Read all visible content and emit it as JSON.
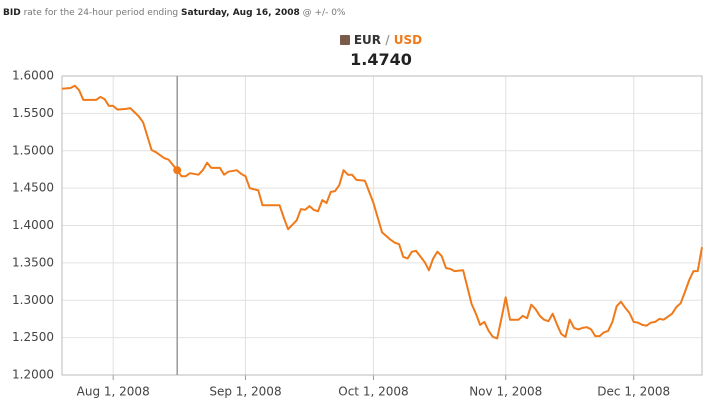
{
  "header": {
    "bid": "BID",
    "rate_text": "rate for the 24-hour period ending",
    "date": "Saturday, Aug 16, 2008",
    "spread": "@ +/- 0%"
  },
  "legend": {
    "base": "EUR",
    "separator": "/",
    "quote": "USD",
    "value": "1.4740"
  },
  "chart_data": {
    "type": "line",
    "color": "#f07a1a",
    "grid": true,
    "cursor": "2008-08-16",
    "x": [
      "2008-07-20",
      "2008-07-22",
      "2008-07-23",
      "2008-07-24",
      "2008-07-25",
      "2008-07-28",
      "2008-07-29",
      "2008-07-30",
      "2008-07-31",
      "2008-08-01",
      "2008-08-02",
      "2008-08-04",
      "2008-08-05",
      "2008-08-07",
      "2008-08-08",
      "2008-08-10",
      "2008-08-11",
      "2008-08-13",
      "2008-08-14",
      "2008-08-16",
      "2008-08-17",
      "2008-08-18",
      "2008-08-19",
      "2008-08-21",
      "2008-08-22",
      "2008-08-23",
      "2008-08-24",
      "2008-08-26",
      "2008-08-27",
      "2008-08-28",
      "2008-08-30",
      "2008-08-31",
      "2008-09-01",
      "2008-09-02",
      "2008-09-04",
      "2008-09-05",
      "2008-09-07",
      "2008-09-09",
      "2008-09-10",
      "2008-09-11",
      "2008-09-13",
      "2008-09-14",
      "2008-09-15",
      "2008-09-16",
      "2008-09-17",
      "2008-09-18",
      "2008-09-19",
      "2008-09-20",
      "2008-09-21",
      "2008-09-22",
      "2008-09-23",
      "2008-09-24",
      "2008-09-25",
      "2008-09-26",
      "2008-09-27",
      "2008-09-29",
      "2008-09-30",
      "2008-10-01",
      "2008-10-03",
      "2008-10-05",
      "2008-10-06",
      "2008-10-07",
      "2008-10-08",
      "2008-10-09",
      "2008-10-10",
      "2008-10-11",
      "2008-10-13",
      "2008-10-14",
      "2008-10-15",
      "2008-10-16",
      "2008-10-17",
      "2008-10-18",
      "2008-10-19",
      "2008-10-20",
      "2008-10-22",
      "2008-10-23",
      "2008-10-24",
      "2008-10-25",
      "2008-10-26",
      "2008-10-27",
      "2008-10-28",
      "2008-10-29",
      "2008-10-30",
      "2008-10-31",
      "2008-11-01",
      "2008-11-02",
      "2008-11-03",
      "2008-11-04",
      "2008-11-05",
      "2008-11-06",
      "2008-11-07",
      "2008-11-08",
      "2008-11-09",
      "2008-11-10",
      "2008-11-11",
      "2008-11-12",
      "2008-11-13",
      "2008-11-14",
      "2008-11-15",
      "2008-11-16",
      "2008-11-17",
      "2008-11-18",
      "2008-11-19",
      "2008-11-20",
      "2008-11-21",
      "2008-11-22",
      "2008-11-23",
      "2008-11-24",
      "2008-11-25",
      "2008-11-26",
      "2008-11-27",
      "2008-11-28",
      "2008-11-29",
      "2008-11-30",
      "2008-12-01",
      "2008-12-02",
      "2008-12-03",
      "2008-12-04",
      "2008-12-05",
      "2008-12-06",
      "2008-12-07",
      "2008-12-08",
      "2008-12-09",
      "2008-12-10",
      "2008-12-11",
      "2008-12-12",
      "2008-12-13",
      "2008-12-14",
      "2008-12-15",
      "2008-12-16",
      "2008-12-17"
    ],
    "values": [
      1.583,
      1.584,
      1.587,
      1.581,
      1.568,
      1.568,
      1.572,
      1.569,
      1.56,
      1.56,
      1.555,
      1.556,
      1.557,
      1.546,
      1.538,
      1.501,
      1.498,
      1.49,
      1.488,
      1.474,
      1.466,
      1.466,
      1.47,
      1.468,
      1.474,
      1.484,
      1.477,
      1.477,
      1.468,
      1.472,
      1.474,
      1.469,
      1.466,
      1.45,
      1.447,
      1.427,
      1.427,
      1.427,
      1.41,
      1.395,
      1.407,
      1.422,
      1.421,
      1.426,
      1.421,
      1.419,
      1.434,
      1.43,
      1.445,
      1.446,
      1.454,
      1.474,
      1.468,
      1.468,
      1.461,
      1.46,
      1.445,
      1.43,
      1.391,
      1.381,
      1.377,
      1.375,
      1.358,
      1.356,
      1.365,
      1.366,
      1.351,
      1.34,
      1.356,
      1.365,
      1.359,
      1.343,
      1.342,
      1.339,
      1.34,
      1.318,
      1.295,
      1.282,
      1.267,
      1.271,
      1.259,
      1.251,
      1.249,
      1.276,
      1.304,
      1.274,
      1.274,
      1.274,
      1.279,
      1.276,
      1.294,
      1.288,
      1.279,
      1.274,
      1.272,
      1.282,
      1.268,
      1.255,
      1.251,
      1.274,
      1.263,
      1.261,
      1.263,
      1.264,
      1.261,
      1.252,
      1.252,
      1.257,
      1.259,
      1.271,
      1.292,
      1.298,
      1.29,
      1.283,
      1.271,
      1.27,
      1.267,
      1.266,
      1.27,
      1.271,
      1.275,
      1.274,
      1.278,
      1.282,
      1.291,
      1.296,
      1.311,
      1.327,
      1.339,
      1.339,
      1.371
    ],
    "xlim": [
      "2008-07-20",
      "2008-12-17"
    ],
    "xticks": [
      {
        "value": "2008-08-01",
        "label": "Aug 1, 2008"
      },
      {
        "value": "2008-09-01",
        "label": "Sep 1, 2008"
      },
      {
        "value": "2008-10-01",
        "label": "Oct 1, 2008"
      },
      {
        "value": "2008-11-01",
        "label": "Nov 1, 2008"
      },
      {
        "value": "2008-12-01",
        "label": "Dec 1, 2008"
      }
    ],
    "ylim": [
      1.2,
      1.6
    ],
    "yticks": [
      {
        "value": 1.2,
        "label": "1.2000"
      },
      {
        "value": 1.25,
        "label": "1.2500"
      },
      {
        "value": 1.3,
        "label": "1.3000"
      },
      {
        "value": 1.35,
        "label": "1.3500"
      },
      {
        "value": 1.4,
        "label": "1.4000"
      },
      {
        "value": 1.45,
        "label": "1.4500"
      },
      {
        "value": 1.5,
        "label": "1.5000"
      },
      {
        "value": 1.55,
        "label": "1.5500"
      },
      {
        "value": 1.6,
        "label": "1.6000"
      }
    ]
  }
}
